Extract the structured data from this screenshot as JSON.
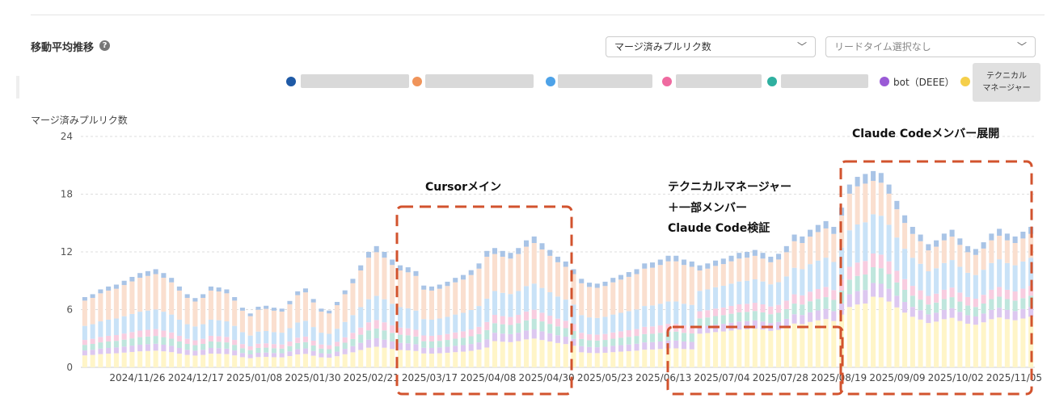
{
  "header": {
    "title": "移動平均推移",
    "help_icon": "question-circle-icon"
  },
  "controls": {
    "metric_select": "マージ済みプルリク数",
    "leadtime_select_placeholder": "リードタイム選択なし"
  },
  "legend": {
    "items": [
      {
        "color": "#1f5aa6",
        "label": ""
      },
      {
        "color": "#f0945a",
        "label": ""
      },
      {
        "color": "#4da2e8",
        "label": ""
      },
      {
        "color": "#ef6aa0",
        "label": ""
      },
      {
        "color": "#2fb0a0",
        "label": ""
      },
      {
        "color": "#9a5ad6",
        "label": "bot（DEEE）"
      },
      {
        "color": "#f5cf4a",
        "label": "テクニカル マネージャー"
      }
    ],
    "tm_line1": "テクニカル",
    "tm_line2": "マネージャー"
  },
  "annotations": {
    "cursor_main": "Cursorメイン",
    "tm_verify_1": "テクニカルマネージャー",
    "tm_verify_2": "＋一部メンバー",
    "tm_verify_3": "Claude Code検証",
    "claude_rollout": "Claude Codeメンバー展開"
  },
  "chart_data": {
    "type": "bar",
    "stacked": true,
    "ylabel": "マージ済みプルリク数",
    "ylim": [
      0,
      24
    ],
    "yticks": [
      0,
      6,
      12,
      18,
      24
    ],
    "x_tick_labels": [
      "2024/11/26",
      "2024/12/17",
      "2025/01/08",
      "2025/01/30",
      "2025/02/21",
      "2025/03/17",
      "2025/04/08",
      "2025/04/30",
      "2025/05/23",
      "2025/06/13",
      "2025/07/04",
      "2025/07/28",
      "2025/08/19",
      "2025/09/09",
      "2025/10/02",
      "2025/11/05"
    ],
    "grid": true,
    "total_approx": [
      7.3,
      7.6,
      8.1,
      8.4,
      8.6,
      9,
      9.4,
      9.8,
      10,
      10.2,
      9.8,
      9.3,
      8.4,
      7.6,
      7.2,
      7.6,
      8.4,
      8.3,
      8.1,
      7.3,
      6.2,
      5.6,
      6.3,
      6.4,
      6.2,
      6.1,
      6.9,
      7.9,
      8.2,
      7.1,
      6.1,
      5.9,
      6.8,
      8.0,
      9.2,
      10.6,
      12.0,
      12.6,
      12.0,
      11.2,
      10.6,
      10.4,
      10.0,
      8.5,
      8.4,
      8.6,
      8.9,
      9.3,
      9.6,
      10.1,
      10.8,
      12.1,
      12.4,
      12.1,
      11.9,
      12.4,
      13.2,
      13.6,
      12.9,
      12.2,
      11.5,
      11.0,
      10.2,
      9.2,
      8.8,
      8.7,
      8.9,
      9.3,
      9.6,
      9.9,
      10.2,
      10.8,
      10.9,
      11.2,
      11.6,
      11.6,
      11.2,
      11.0,
      10.6,
      10.8,
      11.1,
      11.3,
      11.6,
      11.9,
      12.0,
      12.2,
      11.9,
      11.5,
      11.8,
      12.6,
      13.8,
      13.6,
      14.3,
      14.8,
      15.2,
      14.6,
      16.6,
      19.0,
      19.8,
      20.1,
      20.4,
      20.2,
      19.0,
      17.3,
      15.8,
      14.6,
      13.8,
      12.8,
      13.2,
      13.9,
      14.3,
      13.4,
      12.6,
      12.3,
      13.0,
      13.9,
      14.4,
      13.9,
      13.6,
      14.1,
      14.6
    ],
    "series_order_bottom_to_top": [
      "テクニカル マネージャー",
      "bot（DEEE）",
      "(hidden teal)",
      "(hidden pink)",
      "(hidden light blue)",
      "(hidden orange)",
      "(hidden dark blue)"
    ]
  }
}
